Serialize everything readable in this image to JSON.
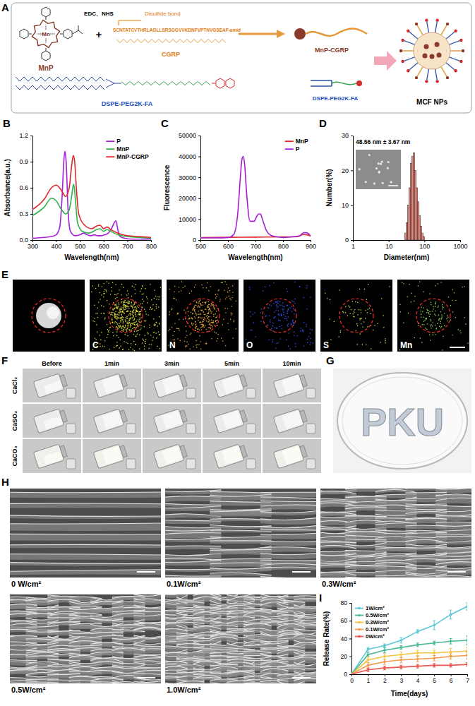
{
  "figure": {
    "panel_letters": [
      "A",
      "B",
      "C",
      "D",
      "E",
      "F",
      "G",
      "H",
      "I"
    ],
    "schematic": {
      "mnp_center": "Mn",
      "mnp": "MnP",
      "reagents": "EDC、NHS",
      "plus": "+",
      "linker": "Disulfide bond",
      "sequence": "SCNTATCVTHRLAGLLSRSGGVVKDNFVPTNVGSEAF-amid",
      "peptide": "CGRP",
      "conjugate": "MnP-CGRP",
      "lipid": "DSPE-PEG2K-FA",
      "lipid_small": "DSPE-PEG2K-FA",
      "nanoparticle": "MCF NPs"
    },
    "eds_maps": [
      "C",
      "N",
      "O",
      "S",
      "Mn"
    ],
    "gelation": {
      "times": [
        "Before",
        "1min",
        "3min",
        "5min",
        "10min"
      ],
      "salts": [
        "CaCl₂",
        "CaSO₄",
        "CaCO₃"
      ]
    },
    "printed_text": "PKU",
    "sem_labels": [
      "0 W/cm²",
      "0.1W/cm²",
      "0.3W/cm²",
      "0.5W/cm²",
      "1.0W/cm²"
    ]
  },
  "chart_data": [
    {
      "type": "line",
      "x_label": "Wavelength(nm)",
      "y_label": "Absorbance(a.u.)",
      "xlim": [
        300,
        800
      ],
      "xticks": [
        300,
        400,
        500,
        600,
        700,
        800
      ],
      "ylim": [
        0,
        1.2
      ],
      "yticks": [
        {
          "value": 0,
          "label": "0.0"
        },
        0.3,
        0.6,
        0.9,
        1.2
      ],
      "legend": "top-right",
      "series": [
        {
          "name": "P",
          "color": "#a51fd8",
          "x": [
            300,
            350,
            380,
            400,
            415,
            425,
            432,
            437,
            442,
            450,
            460,
            480,
            500,
            515,
            530,
            545,
            560,
            575,
            590,
            605,
            620,
            635,
            645,
            652,
            660,
            670,
            690,
            720,
            760,
            800
          ],
          "values": [
            0.02,
            0.03,
            0.04,
            0.06,
            0.15,
            0.5,
            0.9,
            1.02,
            0.9,
            0.35,
            0.1,
            0.05,
            0.06,
            0.08,
            0.06,
            0.05,
            0.06,
            0.05,
            0.05,
            0.06,
            0.08,
            0.14,
            0.2,
            0.22,
            0.12,
            0.04,
            0.02,
            0.01,
            0.01,
            0.01
          ]
        },
        {
          "name": "MnP",
          "color": "#2fb34a",
          "x": [
            300,
            350,
            380,
            400,
            420,
            440,
            455,
            465,
            470,
            474,
            480,
            490,
            510,
            540,
            570,
            585,
            600,
            615,
            630,
            660,
            700,
            750,
            800
          ],
          "values": [
            0.28,
            0.38,
            0.48,
            0.45,
            0.36,
            0.3,
            0.35,
            0.5,
            0.6,
            0.64,
            0.5,
            0.2,
            0.1,
            0.08,
            0.12,
            0.13,
            0.1,
            0.12,
            0.1,
            0.06,
            0.04,
            0.03,
            0.02
          ]
        },
        {
          "name": "MnP-CGRP",
          "color": "#e0242a",
          "x": [
            300,
            350,
            380,
            400,
            420,
            440,
            455,
            465,
            472,
            478,
            485,
            495,
            520,
            550,
            570,
            585,
            600,
            615,
            630,
            660,
            700,
            750,
            800
          ],
          "values": [
            0.35,
            0.47,
            0.6,
            0.63,
            0.58,
            0.5,
            0.6,
            0.85,
            0.97,
            0.9,
            0.6,
            0.3,
            0.17,
            0.13,
            0.16,
            0.17,
            0.13,
            0.15,
            0.12,
            0.08,
            0.05,
            0.04,
            0.03
          ]
        }
      ]
    },
    {
      "type": "line",
      "x_label": "Wavelength(nm)",
      "y_label": "Fluorescence",
      "xlim": [
        500,
        900
      ],
      "xticks": [
        500,
        600,
        700,
        800,
        900
      ],
      "ylim": [
        0,
        50000
      ],
      "yticks": [
        0,
        10000,
        20000,
        30000,
        40000,
        50000
      ],
      "legend": "top-right",
      "series": [
        {
          "name": "MnP",
          "color": "#e0242a",
          "x": [
            500,
            600,
            700,
            800,
            850,
            875,
            890,
            900
          ],
          "values": [
            1200,
            1300,
            1400,
            1500,
            1600,
            2600,
            2400,
            1800
          ]
        },
        {
          "name": "P",
          "color": "#a51fd8",
          "x": [
            500,
            560,
            600,
            620,
            635,
            645,
            650,
            655,
            660,
            668,
            680,
            695,
            705,
            712,
            718,
            725,
            740,
            760,
            780,
            800,
            830,
            860,
            875,
            885,
            900
          ],
          "values": [
            1000,
            1000,
            1200,
            2500,
            12000,
            30000,
            38000,
            40000,
            37000,
            22000,
            9000,
            9000,
            11500,
            12500,
            12500,
            10000,
            4500,
            2000,
            1500,
            1200,
            1500,
            2000,
            3500,
            3500,
            2000
          ]
        }
      ]
    },
    {
      "type": "histogram",
      "x_label": "Diameter(nm)",
      "y_label": "Number(%)",
      "log": "x",
      "xlim": [
        1,
        1000
      ],
      "xticks": [
        1,
        10,
        100,
        1000
      ],
      "ylim": [
        0,
        30
      ],
      "yticks": [
        0,
        10,
        20,
        30
      ],
      "annotations": [
        "48.56 nm ± 3.67 nm"
      ],
      "color": "#f4877a",
      "bins": [
        28.3,
        31,
        34,
        37,
        40.7,
        44.5,
        48.7,
        53.3,
        58.3,
        63.8,
        69.8,
        76.4,
        83.6,
        91.5,
        100
      ],
      "values": [
        2,
        5,
        10,
        15,
        22,
        24,
        25,
        20,
        15,
        11,
        7,
        4,
        2,
        1
      ]
    },
    {
      "type": "line",
      "x_label": "Time(days)",
      "y_label": "Release Rate(%)",
      "xlim": [
        0,
        7
      ],
      "xticks": [
        0,
        1,
        2,
        3,
        4,
        5,
        6,
        7
      ],
      "ylim": [
        0,
        80
      ],
      "yticks": [
        0,
        20,
        40,
        60,
        80
      ],
      "legend": "top-left",
      "marker": "circle",
      "x": [
        0,
        1,
        2,
        3,
        4,
        5,
        6,
        7
      ],
      "series": [
        {
          "name": "1W/cm²",
          "color": "#5cc8d7",
          "values": [
            0,
            28,
            32,
            38,
            48,
            55,
            67,
            76
          ],
          "errors": [
            0,
            2,
            2,
            3,
            2,
            5,
            5,
            4
          ]
        },
        {
          "name": "0.5W/cm²",
          "color": "#4bb89a",
          "values": [
            0,
            22,
            27,
            30,
            33,
            35,
            37,
            38
          ],
          "errors": [
            0,
            2,
            3,
            2,
            2,
            2,
            3,
            5
          ]
        },
        {
          "name": "0.3W/cm²",
          "color": "#f5c342",
          "values": [
            0,
            16,
            20,
            22,
            24,
            24,
            25,
            26
          ],
          "errors": [
            0,
            3,
            3,
            3,
            3,
            3,
            4,
            4
          ]
        },
        {
          "name": "0.1W/cm²",
          "color": "#f39a4d",
          "values": [
            0,
            10,
            14,
            16,
            17,
            18,
            20,
            21
          ],
          "errors": [
            0,
            3,
            3,
            3,
            3,
            3,
            3,
            4
          ]
        },
        {
          "name": "0W/cm²",
          "color": "#e9574f",
          "values": [
            0,
            5,
            7,
            8,
            9,
            10,
            10,
            11
          ],
          "errors": [
            0,
            2,
            2,
            2,
            2,
            2,
            2,
            2
          ]
        }
      ]
    }
  ]
}
